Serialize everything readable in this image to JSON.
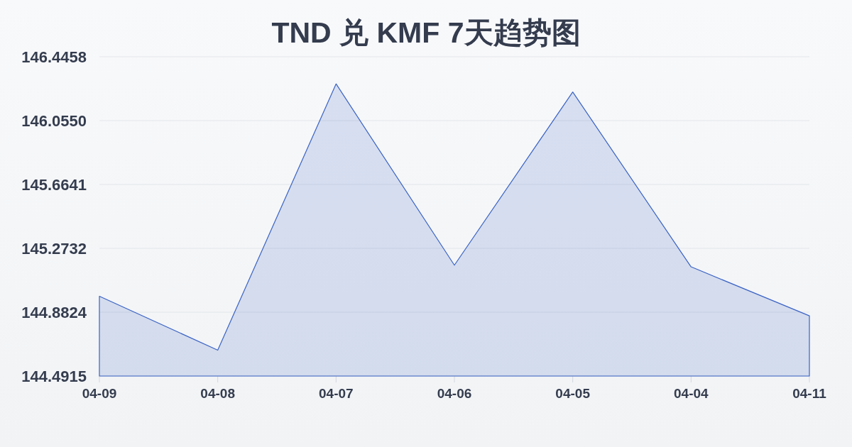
{
  "chart_data": {
    "type": "area",
    "title": "TND 兑 KMF 7天趋势图",
    "categories": [
      "04-09",
      "04-08",
      "04-07",
      "04-06",
      "04-05",
      "04-04",
      "04-11"
    ],
    "values": [
      144.98,
      144.65,
      146.28,
      145.17,
      146.23,
      145.16,
      144.86
    ],
    "color": "#3b63c4",
    "ylim": [
      144.4915,
      146.4458
    ],
    "yticks": [
      144.4915,
      144.8824,
      145.2732,
      145.6641,
      {
        "value": 146.055,
        "label": "146.0550"
      },
      146.4458
    ],
    "grid": "y"
  }
}
